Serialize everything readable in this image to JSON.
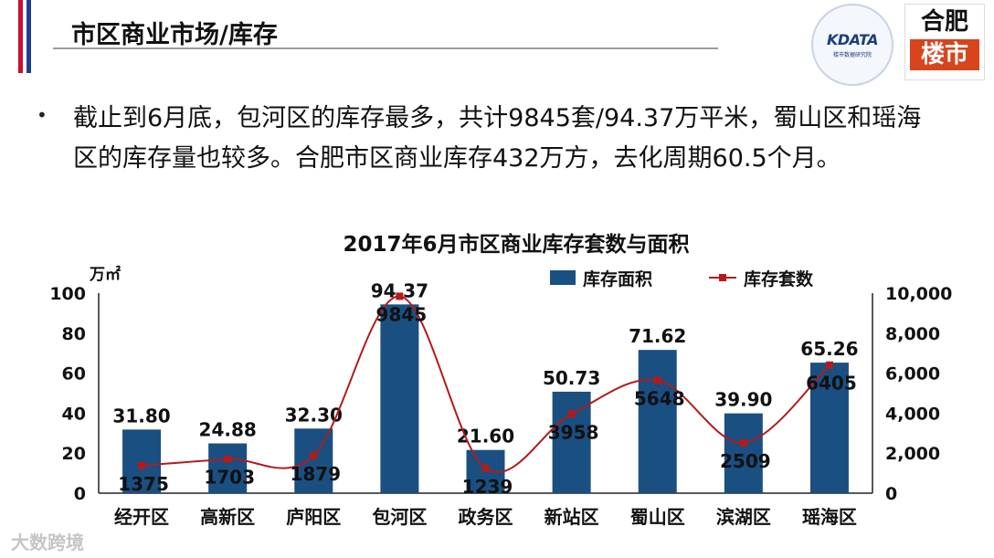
{
  "header": {
    "title": "市区商业市场/库存",
    "stripe_colors": [
      "#c8102e",
      "#1f3f8c"
    ]
  },
  "logos": {
    "kdata_text": "KDATA",
    "kdata_sub": "楼市数据研究院",
    "hefei_top": "合肥",
    "hefei_bottom": "楼市"
  },
  "bullet": {
    "text": "截止到6月底，包河区的库存最多，共计9845套/94.37万平米，蜀山区和瑶海区的库存量也较多。合肥市区商业库存432万方，去化周期60.5个月。"
  },
  "watermark": "大数跨境",
  "chart_data": {
    "type": "bar",
    "title": "2017年6月市区商业库存套数与面积",
    "y_unit_left": "万㎡",
    "categories": [
      "经开区",
      "高新区",
      "庐阳区",
      "包河区",
      "政务区",
      "新站区",
      "蜀山区",
      "滨湖区",
      "瑶海区"
    ],
    "series": [
      {
        "name": "库存面积",
        "type": "bar",
        "axis": "left",
        "color": "#1a4f82",
        "values": [
          31.8,
          24.88,
          32.3,
          94.37,
          21.6,
          50.73,
          71.62,
          39.9,
          65.26
        ],
        "labels": [
          "31.80",
          "24.88",
          "32.30",
          "94.37",
          "21.60",
          "50.73",
          "71.62",
          "39.90",
          "65.26"
        ]
      },
      {
        "name": "库存套数",
        "type": "line",
        "axis": "right",
        "color": "#b31b1b",
        "values": [
          1375,
          1703,
          1879,
          9845,
          1239,
          3958,
          5648,
          2509,
          6405
        ],
        "labels": [
          "1375",
          "1703",
          "1879",
          "9845",
          "1239",
          "3958",
          "5648",
          "2509",
          "6405"
        ]
      }
    ],
    "ylim_left": [
      0,
      100
    ],
    "ylim_right": [
      0,
      10000
    ],
    "yticks_left": [
      "0",
      "20",
      "40",
      "60",
      "80",
      "100"
    ],
    "yticks_right": [
      "0",
      "2,000",
      "4,000",
      "6,000",
      "8,000",
      "10,000"
    ],
    "legend_position": "top-right",
    "grid": false
  }
}
